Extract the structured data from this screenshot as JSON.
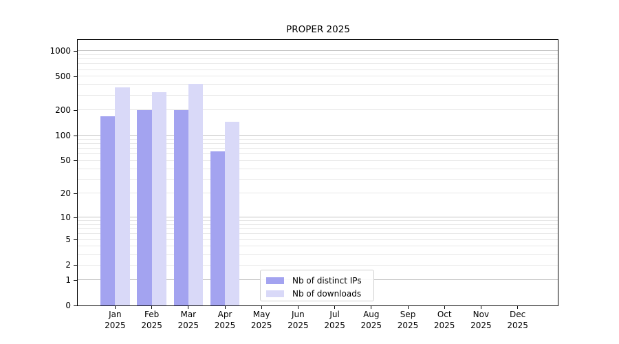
{
  "chart_data": {
    "type": "bar",
    "title": "PROPER 2025",
    "categories": [
      "Jan 2025",
      "Feb 2025",
      "Mar 2025",
      "Apr 2025",
      "May 2025",
      "Jun 2025",
      "Jul 2025",
      "Aug 2025",
      "Sep 2025",
      "Oct 2025",
      "Nov 2025",
      "Dec 2025"
    ],
    "series": [
      {
        "name": "Nb of distinct IPs",
        "color": "#a3a3f0",
        "values": [
          170,
          200,
          200,
          65,
          null,
          null,
          null,
          null,
          null,
          null,
          null,
          null
        ]
      },
      {
        "name": "Nb of downloads",
        "color": "#d9d9f8",
        "values": [
          370,
          325,
          410,
          145,
          null,
          null,
          null,
          null,
          null,
          null,
          null,
          null
        ]
      }
    ],
    "y_ticks": [
      0,
      1,
      2,
      5,
      10,
      20,
      50,
      100,
      200,
      500,
      1000
    ],
    "y_scale": "log(1+y)",
    "ylim": [
      0,
      1300
    ],
    "grid": "horizontal, light minors with darker lines at 1/10/100/1000",
    "legend_position": "inside plot, lower center"
  },
  "colors": {
    "background": "#ffffff",
    "axis": "#000000",
    "grid_minor": "#e7e7e7",
    "grid_major": "#c2c2c2",
    "legend_border": "#cfcfcf",
    "bar_distinct_ips": "#a3a3f0",
    "bar_downloads": "#d9d9f8"
  }
}
